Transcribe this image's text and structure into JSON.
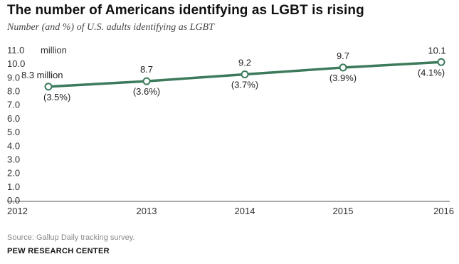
{
  "title": "The number of Americans identifying as LGBT is rising",
  "subtitle": "Number (and %) of U.S. adults identifying as LGBT",
  "source": "Source: Gallup Daily tracking survey.",
  "brand": "PEW RESEARCH CENTER",
  "colors": {
    "line": "#3c7a5b",
    "axis": "#555555",
    "text": "#222222"
  },
  "chart_data": {
    "type": "line",
    "x": [
      "2012",
      "2013",
      "2014",
      "2015",
      "2016"
    ],
    "series": [
      {
        "values": [
          8.3,
          8.7,
          9.2,
          9.7,
          10.1
        ],
        "value_labels": [
          "8.3 million",
          "8.7",
          "9.2",
          "9.7",
          "10.1"
        ],
        "percent_labels": [
          "(3.5%)",
          "(3.6%)",
          "(3.7%)",
          "(3.9%)",
          "(4.1%)"
        ]
      }
    ],
    "y_ticks": [
      "0.0",
      "1.0",
      "2.0",
      "3.0",
      "4.0",
      "5.0",
      "6.0",
      "7.0",
      "8.0",
      "9.0",
      "10.0",
      "11.0"
    ],
    "y_unit": "million",
    "ylim": [
      0,
      11
    ],
    "grid": false,
    "markers": "hollow-circle"
  }
}
